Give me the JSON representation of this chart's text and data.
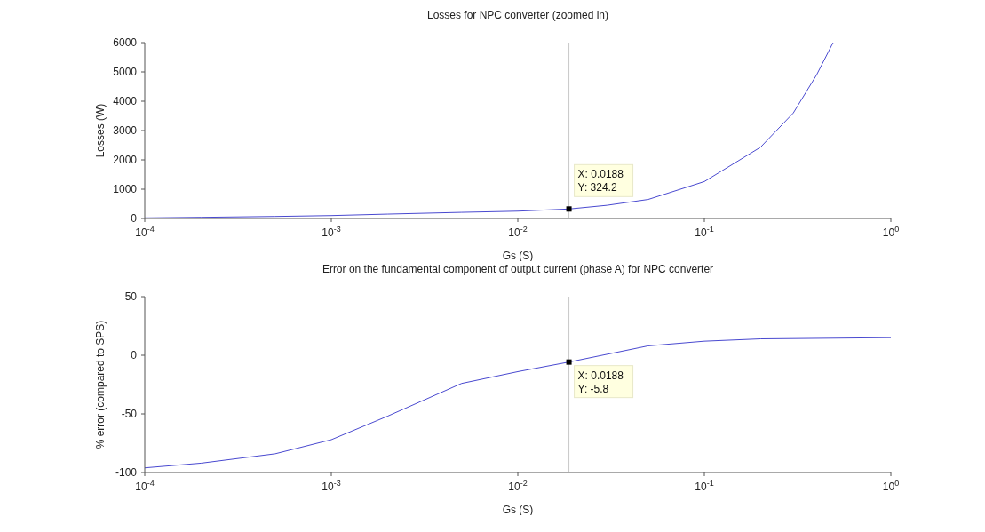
{
  "chart_data": [
    {
      "type": "line",
      "title": "Losses for NPC converter (zoomed in)",
      "xlabel": "Gs (S)",
      "ylabel": "Losses (W)",
      "log": "x",
      "x": [
        0.0001,
        0.0002,
        0.0005,
        0.001,
        0.002,
        0.005,
        0.01,
        0.0188,
        0.03,
        0.05,
        0.1,
        0.2,
        0.3,
        0.4,
        0.49
      ],
      "series": [
        {
          "color": "#4a4ad0",
          "values": [
            20,
            40,
            70,
            100,
            150,
            210,
            250,
            324.2,
            450,
            650,
            1260,
            2430,
            3600,
            4900,
            6000
          ]
        }
      ],
      "xlim": [
        0.0001,
        1
      ],
      "xticks": [
        {
          "value": 0.0001,
          "label": "10$^{-4}$"
        },
        {
          "value": 0.001,
          "label": "10$^{-3}$"
        },
        {
          "value": 0.01,
          "label": "10$^{-2}$"
        },
        {
          "value": 0.1,
          "label": "10$^{-1}$"
        },
        {
          "value": 1,
          "label": "10$^{0}$"
        }
      ],
      "ylim": [
        0,
        6000
      ],
      "yticks": [
        0,
        1000,
        2000,
        3000,
        4000,
        5000,
        6000
      ],
      "ref_lines": [
        {
          "axis": "x",
          "value": 0.0188,
          "color": "#c8c8c8"
        }
      ],
      "annotations": [
        {
          "text": "X: 0.0188\nY: 324.2",
          "x": 0.0188,
          "y": 324.2
        }
      ],
      "grid": false,
      "legend": false,
      "marker": "none",
      "line_style": "solid"
    },
    {
      "type": "line",
      "title": "Error on the fundamental component of output current (phase A) for NPC converter",
      "xlabel": "Gs (S)",
      "ylabel": "% error (compared to SPS)",
      "log": "x",
      "x": [
        0.0001,
        0.0002,
        0.0005,
        0.001,
        0.002,
        0.005,
        0.01,
        0.0188,
        0.05,
        0.1,
        0.2,
        1
      ],
      "series": [
        {
          "color": "#4a4ad0",
          "values": [
            -96,
            -92,
            -84,
            -72,
            -52,
            -24,
            -14,
            -5.8,
            8,
            12,
            14,
            15
          ]
        }
      ],
      "xlim": [
        0.0001,
        1
      ],
      "xticks": [
        {
          "value": 0.0001,
          "label": "10$^{-4}$"
        },
        {
          "value": 0.001,
          "label": "10$^{-3}$"
        },
        {
          "value": 0.01,
          "label": "10$^{-2}$"
        },
        {
          "value": 0.1,
          "label": "10$^{-1}$"
        },
        {
          "value": 1,
          "label": "10$^{0}$"
        }
      ],
      "ylim": [
        -100,
        50
      ],
      "yticks": [
        -100,
        -50,
        0,
        50
      ],
      "ref_lines": [
        {
          "axis": "x",
          "value": 0.0188,
          "color": "#c8c8c8"
        }
      ],
      "annotations": [
        {
          "text": "X: 0.0188\nY: -5.8",
          "x": 0.0188,
          "y": -5.8
        }
      ],
      "grid": false,
      "legend": false,
      "marker": "none",
      "line_style": "solid"
    }
  ]
}
